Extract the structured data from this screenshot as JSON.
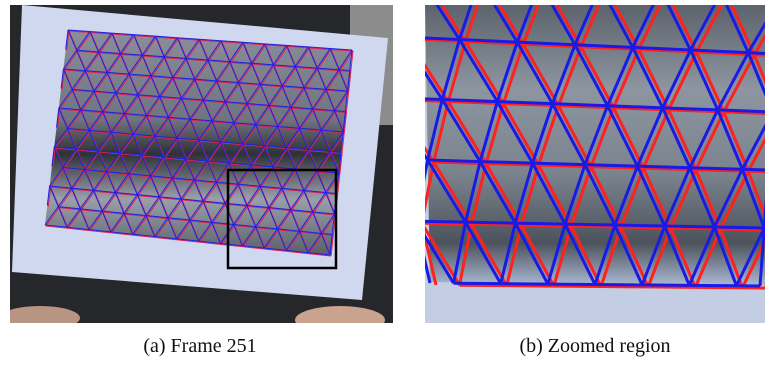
{
  "figure": {
    "captions": [
      "(a) Frame 251",
      "(b) Zoomed region"
    ]
  }
}
